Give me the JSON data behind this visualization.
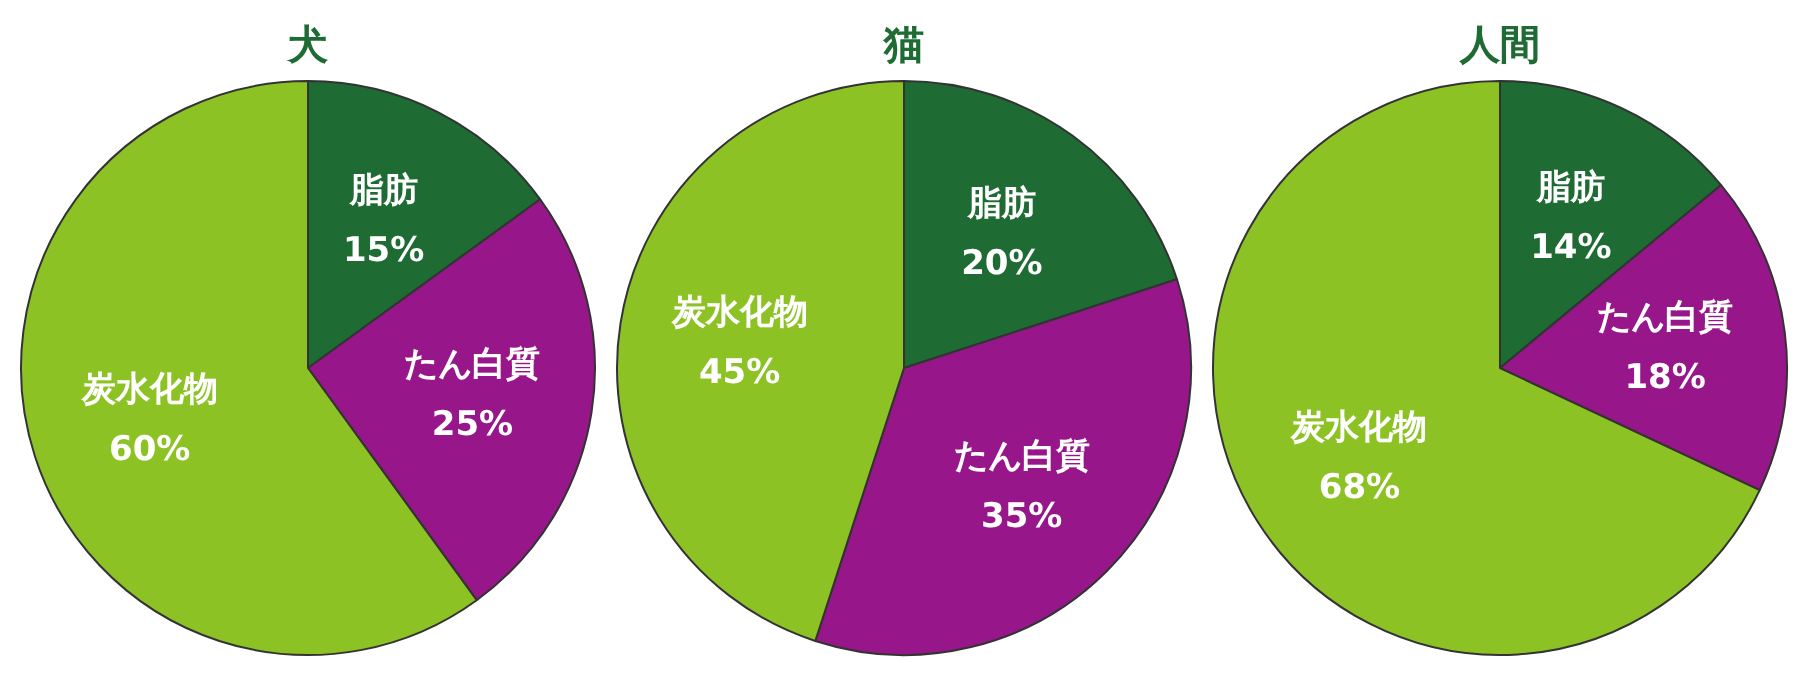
{
  "chart_data": [
    {
      "type": "pie",
      "title": "犬",
      "categories": [
        "脂肪",
        "たん白質",
        "炭水化物"
      ],
      "values": [
        15,
        25,
        60
      ],
      "value_labels": [
        "15%",
        "25%",
        "60%"
      ],
      "colors": [
        "#1e6b33",
        "#97168a",
        "#8cc224"
      ]
    },
    {
      "type": "pie",
      "title": "猫",
      "categories": [
        "脂肪",
        "たん白質",
        "炭水化物"
      ],
      "values": [
        20,
        35,
        45
      ],
      "value_labels": [
        "20%",
        "35%",
        "45%"
      ],
      "colors": [
        "#1e6b33",
        "#97168a",
        "#8cc224"
      ]
    },
    {
      "type": "pie",
      "title": "人間",
      "categories": [
        "脂肪",
        "たん白質",
        "炭水化物"
      ],
      "values": [
        14,
        18,
        68
      ],
      "value_labels": [
        "14%",
        "18%",
        "68%"
      ],
      "colors": [
        "#1e6b33",
        "#97168a",
        "#8cc224"
      ]
    }
  ]
}
